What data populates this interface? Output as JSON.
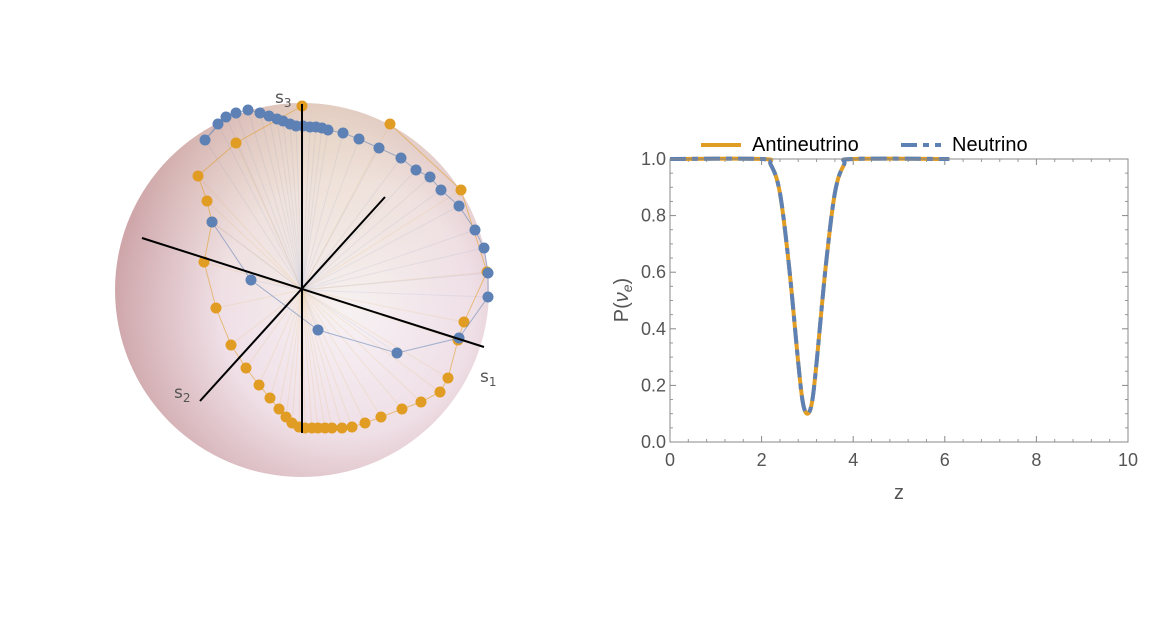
{
  "colors": {
    "antineutrino": "#E19C24",
    "neutrino": "#5E81B5",
    "axis": "#555555",
    "frame": "#888888"
  },
  "sphere": {
    "axis_labels": {
      "s1": {
        "main": "s",
        "sub": "1"
      },
      "s2": {
        "main": "s",
        "sub": "2"
      },
      "s3": {
        "main": "s",
        "sub": "3"
      }
    }
  },
  "chart_data": [
    {
      "type": "scatter3d",
      "series": [
        {
          "color": "#E19C24"
        },
        {
          "color": "#5E81B5"
        }
      ]
    },
    {
      "type": "line",
      "xlabel": "z",
      "ylabel": {
        "main": "P(",
        "nu": "ν",
        "sub": "e",
        "close": ")"
      },
      "xlim": [
        0,
        10
      ],
      "ylim": [
        0,
        1
      ],
      "xticks": [
        0,
        2,
        4,
        6,
        8,
        10
      ],
      "yticks": [
        0.0,
        0.2,
        0.4,
        0.6,
        0.8,
        1.0
      ],
      "xtick_labels": [
        "0",
        "2",
        "4",
        "6",
        "8",
        "10"
      ],
      "ytick_labels": [
        "0.0",
        "0.2",
        "0.4",
        "0.6",
        "0.8",
        "1.0"
      ],
      "legend_position": "top",
      "series": [
        {
          "name": "Antineutrino",
          "style": "solid",
          "color": "#E19C24",
          "x": [
            0,
            2.0,
            2.2,
            2.4,
            2.6,
            2.8,
            2.9,
            3.0,
            3.1,
            3.2,
            3.4,
            3.6,
            3.8,
            4.0,
            6.1
          ],
          "y": [
            1.0,
            1.0,
            0.98,
            0.88,
            0.62,
            0.28,
            0.14,
            0.1,
            0.14,
            0.28,
            0.62,
            0.88,
            0.98,
            1.0,
            1.0
          ]
        },
        {
          "name": "Neutrino",
          "style": "dashed",
          "color": "#5E81B5",
          "x": [
            0,
            2.0,
            2.2,
            2.4,
            2.6,
            2.8,
            2.9,
            3.0,
            3.1,
            3.2,
            3.4,
            3.6,
            3.8,
            4.0,
            6.1
          ],
          "y": [
            1.0,
            1.0,
            0.98,
            0.88,
            0.62,
            0.28,
            0.14,
            0.1,
            0.14,
            0.28,
            0.62,
            0.88,
            0.98,
            1.0,
            1.0
          ]
        }
      ]
    }
  ]
}
